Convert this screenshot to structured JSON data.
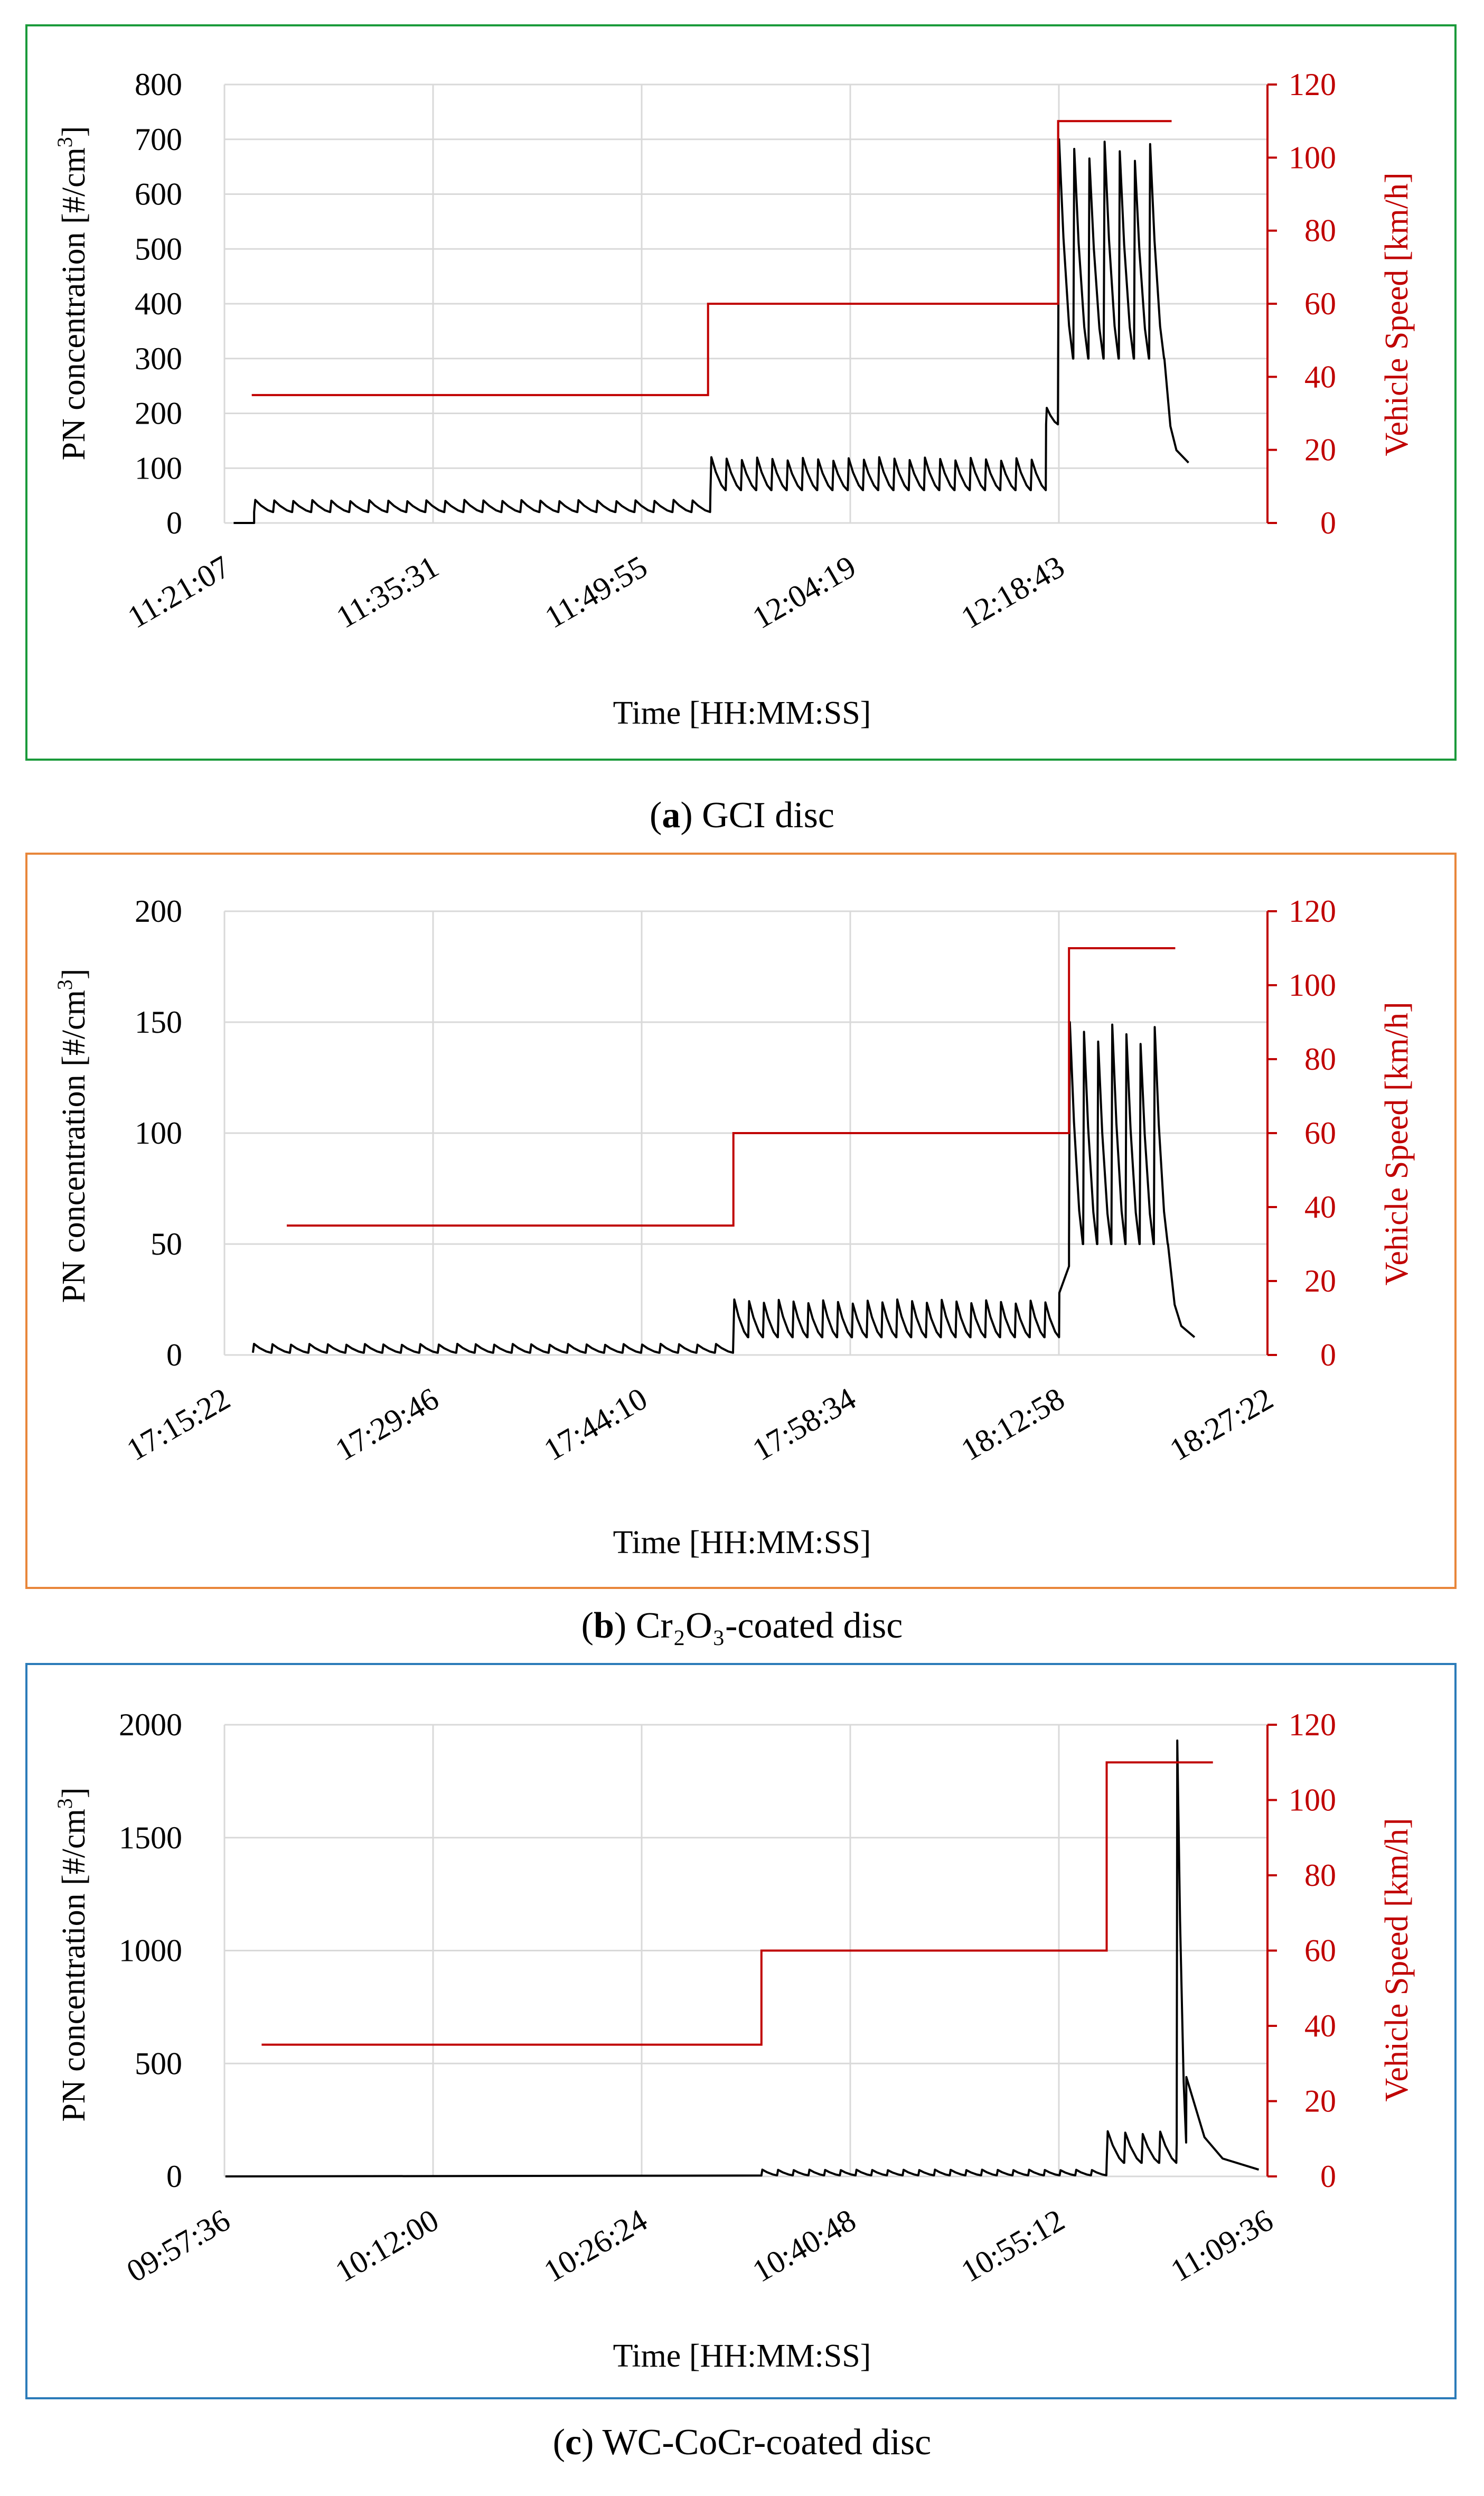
{
  "chart_data": [
    {
      "id": "a",
      "type": "line",
      "caption": {
        "letter": "a",
        "open": "(",
        "close": ")",
        "text": " GCI disc"
      },
      "frame_color": "#1a9a3a",
      "xlabel": "Time [HH:MM:SS]",
      "ylabel": "PN concentration [#/cm",
      "ylabel_sup": "3",
      "ylabel_close": "]",
      "y2label": "Vehicle Speed [km/h]",
      "x_ticks": [
        "11:21:07",
        "11:35:31",
        "11:49:55",
        "12:04:19",
        "12:18:43"
      ],
      "xlim": [
        "11:21:07",
        "12:33:07"
      ],
      "ylim": [
        0,
        800
      ],
      "y_ticks": [
        "0",
        "100",
        "200",
        "300",
        "400",
        "500",
        "600",
        "700",
        "800"
      ],
      "y2lim": [
        0,
        120
      ],
      "y2_ticks": [
        "0",
        "20",
        "40",
        "60",
        "80",
        "100",
        "120"
      ],
      "speed_series": {
        "name": "Vehicle Speed [km/h]",
        "color": "#c00000",
        "segments": [
          {
            "from": "11:23:00",
            "to": "11:54:30",
            "value": 35
          },
          {
            "from": "11:54:30",
            "to": "12:18:40",
            "value": 60
          },
          {
            "from": "12:18:40",
            "to": "12:26:30",
            "value": 110
          }
        ]
      },
      "pn_series": {
        "name": "PN concentration",
        "color": "#000000",
        "start": "11:21:45",
        "phases": [
          {
            "from": "11:21:45",
            "to": "11:23:10",
            "low": 0,
            "high": 0,
            "cycles": 0
          },
          {
            "from": "11:23:10",
            "to": "11:54:40",
            "low": 20,
            "high": 42,
            "cycles": 24
          },
          {
            "from": "11:54:40",
            "to": "12:17:50",
            "low": 60,
            "high": 120,
            "cycles": 22
          },
          {
            "from": "12:17:50",
            "to": "12:18:40",
            "low": 180,
            "high": 210,
            "cycles": 1
          },
          {
            "from": "12:18:40",
            "to": "12:26:00",
            "low": 300,
            "high": 700,
            "cycles": 7
          },
          {
            "from": "12:26:00",
            "to": "12:27:40",
            "low": 110,
            "high": 300,
            "cycles": 0
          }
        ]
      }
    },
    {
      "id": "b",
      "type": "line",
      "caption": {
        "letter": "b",
        "open": "(",
        "close": ")",
        "text": " Cr₂O₃-coated disc"
      },
      "frame_color": "#e8863a",
      "xlabel": "Time [HH:MM:SS]",
      "ylabel": "PN concentration [#/cm",
      "ylabel_sup": "3",
      "ylabel_close": "]",
      "y2label": "Vehicle Speed [km/h]",
      "x_ticks": [
        "17:15:22",
        "17:29:46",
        "17:44:10",
        "17:58:34",
        "18:12:58",
        "18:27:22"
      ],
      "xlim": [
        "17:15:22",
        "18:27:22"
      ],
      "ylim": [
        0,
        200
      ],
      "y_ticks": [
        "0",
        "50",
        "100",
        "150",
        "200"
      ],
      "y2lim": [
        0,
        120
      ],
      "y2_ticks": [
        "0",
        "20",
        "40",
        "60",
        "80",
        "100",
        "120"
      ],
      "speed_series": {
        "name": "Vehicle Speed [km/h]",
        "color": "#c00000",
        "segments": [
          {
            "from": "17:19:40",
            "to": "17:50:30",
            "value": 35
          },
          {
            "from": "17:50:30",
            "to": "18:13:40",
            "value": 60
          },
          {
            "from": "18:13:40",
            "to": "18:21:00",
            "value": 110
          }
        ]
      },
      "pn_series": {
        "name": "PN concentration",
        "color": "#000000",
        "start": "17:17:20",
        "phases": [
          {
            "from": "17:17:20",
            "to": "17:50:30",
            "low": 1,
            "high": 5,
            "cycles": 26
          },
          {
            "from": "17:50:30",
            "to": "18:13:00",
            "low": 8,
            "high": 25,
            "cycles": 22
          },
          {
            "from": "18:13:00",
            "to": "18:13:40",
            "low": 28,
            "high": 40,
            "cycles": 0
          },
          {
            "from": "18:13:40",
            "to": "18:20:30",
            "low": 50,
            "high": 150,
            "cycles": 7
          },
          {
            "from": "18:20:30",
            "to": "18:22:20",
            "low": 8,
            "high": 50,
            "cycles": 0
          }
        ]
      }
    },
    {
      "id": "c",
      "type": "line",
      "caption": {
        "letter": "c",
        "open": "(",
        "close": ")",
        "text": " WC-CoCr-coated disc"
      },
      "frame_color": "#2b7bb9",
      "xlabel": "Time [HH:MM:SS]",
      "ylabel": "PN concentration [#/cm",
      "ylabel_sup": "3",
      "ylabel_close": "]",
      "y2label": "Vehicle Speed [km/h]",
      "x_ticks": [
        "09:57:36",
        "10:12:00",
        "10:26:24",
        "10:40:48",
        "10:55:12",
        "11:09:36"
      ],
      "xlim": [
        "09:57:36",
        "11:09:36"
      ],
      "ylim": [
        0,
        2000
      ],
      "y_ticks": [
        "0",
        "500",
        "1000",
        "1500",
        "2000"
      ],
      "y2lim": [
        0,
        120
      ],
      "y2_ticks": [
        "0",
        "20",
        "40",
        "60",
        "80",
        "100",
        "120"
      ],
      "speed_series": {
        "name": "Vehicle Speed [km/h]",
        "color": "#c00000",
        "segments": [
          {
            "from": "10:00:10",
            "to": "10:34:40",
            "value": 35
          },
          {
            "from": "10:34:40",
            "to": "10:58:30",
            "value": 60
          },
          {
            "from": "10:58:30",
            "to": "11:05:50",
            "value": 110
          }
        ]
      },
      "pn_series": {
        "name": "PN concentration",
        "color": "#000000",
        "start": "09:57:40",
        "phases": [
          {
            "from": "09:57:40",
            "to": "10:34:40",
            "low": 0,
            "high": 4,
            "cycles": 0
          },
          {
            "from": "10:34:40",
            "to": "10:58:30",
            "low": 5,
            "high": 30,
            "cycles": 22
          },
          {
            "from": "10:58:30",
            "to": "11:03:20",
            "low": 60,
            "high": 200,
            "cycles": 4
          },
          {
            "from": "11:03:20",
            "to": "11:04:00",
            "low": 150,
            "high": 1930,
            "cycles": 1
          },
          {
            "from": "11:04:00",
            "to": "11:09:00",
            "low": 30,
            "high": 440,
            "cycles": 0
          }
        ]
      }
    }
  ]
}
